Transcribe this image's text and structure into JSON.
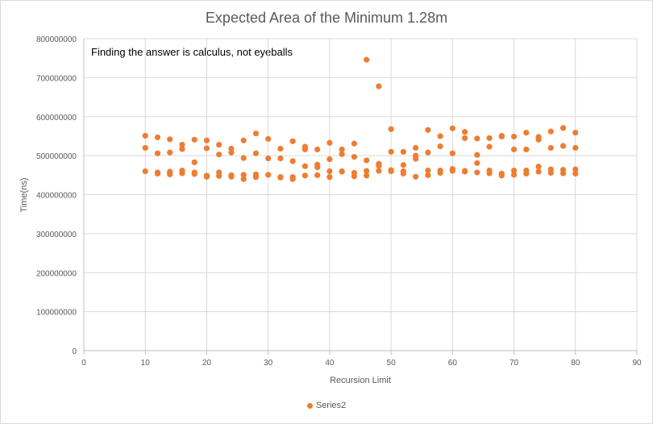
{
  "colors": {
    "marker": "#ed7d31",
    "gridline": "#d9d9d9",
    "axis_line": "#bfbfbf",
    "text": "#595959"
  },
  "chart_data": {
    "type": "scatter",
    "title": "Expected Area of the Minimum 1.28m",
    "annotation": "Finding the answer is calculus, not eyeballs",
    "xlabel": "Recursion Limit",
    "ylabel": "Time(ns)",
    "xlim": [
      0,
      90
    ],
    "ylim": [
      0,
      800000000
    ],
    "x_ticks": [
      0,
      10,
      20,
      30,
      40,
      50,
      60,
      70,
      80,
      90
    ],
    "x_tick_labels": [
      "0",
      "10",
      "20",
      "30",
      "40",
      "50",
      "60",
      "70",
      "80",
      "90"
    ],
    "y_ticks": [
      0,
      100000000,
      200000000,
      300000000,
      400000000,
      500000000,
      600000000,
      700000000,
      800000000
    ],
    "y_tick_labels": [
      "0",
      "100000000",
      "200000000",
      "300000000",
      "400000000",
      "500000000",
      "600000000",
      "700000000",
      "800000000"
    ],
    "grid": true,
    "legend_position": "bottom",
    "series": [
      {
        "name": "Series2",
        "points": [
          [
            10,
            551000000
          ],
          [
            10,
            520000000
          ],
          [
            10,
            460000000
          ],
          [
            12,
            547000000
          ],
          [
            12,
            506000000
          ],
          [
            12,
            457000000
          ],
          [
            12,
            454000000
          ],
          [
            14,
            542000000
          ],
          [
            14,
            508000000
          ],
          [
            14,
            459000000
          ],
          [
            14,
            456000000
          ],
          [
            14,
            452000000
          ],
          [
            16,
            528000000
          ],
          [
            16,
            517000000
          ],
          [
            16,
            462000000
          ],
          [
            16,
            455000000
          ],
          [
            18,
            541000000
          ],
          [
            18,
            483000000
          ],
          [
            18,
            457000000
          ],
          [
            18,
            453000000
          ],
          [
            20,
            539000000
          ],
          [
            20,
            519000000
          ],
          [
            20,
            449000000
          ],
          [
            20,
            446000000
          ],
          [
            22,
            528000000
          ],
          [
            22,
            503000000
          ],
          [
            22,
            457000000
          ],
          [
            22,
            448000000
          ],
          [
            24,
            518000000
          ],
          [
            24,
            508000000
          ],
          [
            24,
            450000000
          ],
          [
            24,
            446000000
          ],
          [
            26,
            539000000
          ],
          [
            26,
            494000000
          ],
          [
            26,
            451000000
          ],
          [
            26,
            440000000
          ],
          [
            28,
            557000000
          ],
          [
            28,
            506000000
          ],
          [
            28,
            452000000
          ],
          [
            28,
            445000000
          ],
          [
            30,
            543000000
          ],
          [
            30,
            493000000
          ],
          [
            30,
            451000000
          ],
          [
            32,
            518000000
          ],
          [
            32,
            493000000
          ],
          [
            32,
            445000000
          ],
          [
            32,
            444000000
          ],
          [
            34,
            537000000
          ],
          [
            34,
            486000000
          ],
          [
            34,
            445000000
          ],
          [
            34,
            440000000
          ],
          [
            36,
            523000000
          ],
          [
            36,
            516000000
          ],
          [
            36,
            473000000
          ],
          [
            36,
            449000000
          ],
          [
            38,
            516000000
          ],
          [
            38,
            477000000
          ],
          [
            38,
            470000000
          ],
          [
            38,
            450000000
          ],
          [
            40,
            533000000
          ],
          [
            40,
            491000000
          ],
          [
            40,
            460000000
          ],
          [
            40,
            445000000
          ],
          [
            42,
            516000000
          ],
          [
            42,
            504000000
          ],
          [
            42,
            460000000
          ],
          [
            42,
            459000000
          ],
          [
            44,
            531000000
          ],
          [
            44,
            497000000
          ],
          [
            44,
            456000000
          ],
          [
            44,
            447000000
          ],
          [
            46,
            746000000
          ],
          [
            46,
            488000000
          ],
          [
            46,
            461000000
          ],
          [
            46,
            449000000
          ],
          [
            48,
            678000000
          ],
          [
            48,
            479000000
          ],
          [
            48,
            474000000
          ],
          [
            48,
            461000000
          ],
          [
            50,
            568000000
          ],
          [
            50,
            510000000
          ],
          [
            50,
            463000000
          ],
          [
            50,
            460000000
          ],
          [
            52,
            510000000
          ],
          [
            52,
            476000000
          ],
          [
            52,
            460000000
          ],
          [
            52,
            454000000
          ],
          [
            54,
            520000000
          ],
          [
            54,
            500000000
          ],
          [
            54,
            492000000
          ],
          [
            54,
            446000000
          ],
          [
            56,
            566000000
          ],
          [
            56,
            508000000
          ],
          [
            56,
            462000000
          ],
          [
            56,
            450000000
          ],
          [
            58,
            550000000
          ],
          [
            58,
            524000000
          ],
          [
            58,
            462000000
          ],
          [
            58,
            456000000
          ],
          [
            60,
            570000000
          ],
          [
            60,
            506000000
          ],
          [
            60,
            466000000
          ],
          [
            60,
            461000000
          ],
          [
            62,
            561000000
          ],
          [
            62,
            545000000
          ],
          [
            62,
            461000000
          ],
          [
            62,
            459000000
          ],
          [
            64,
            544000000
          ],
          [
            64,
            502000000
          ],
          [
            64,
            481000000
          ],
          [
            64,
            457000000
          ],
          [
            66,
            545000000
          ],
          [
            66,
            523000000
          ],
          [
            66,
            462000000
          ],
          [
            66,
            455000000
          ],
          [
            68,
            551000000
          ],
          [
            68,
            549000000
          ],
          [
            68,
            454000000
          ],
          [
            68,
            449000000
          ],
          [
            70,
            549000000
          ],
          [
            70,
            516000000
          ],
          [
            70,
            462000000
          ],
          [
            70,
            451000000
          ],
          [
            72,
            559000000
          ],
          [
            72,
            516000000
          ],
          [
            72,
            462000000
          ],
          [
            72,
            454000000
          ],
          [
            74,
            548000000
          ],
          [
            74,
            541000000
          ],
          [
            74,
            472000000
          ],
          [
            74,
            459000000
          ],
          [
            76,
            562000000
          ],
          [
            76,
            520000000
          ],
          [
            76,
            465000000
          ],
          [
            76,
            456000000
          ],
          [
            78,
            571000000
          ],
          [
            78,
            525000000
          ],
          [
            78,
            464000000
          ],
          [
            78,
            455000000
          ],
          [
            80,
            559000000
          ],
          [
            80,
            520000000
          ],
          [
            80,
            465000000
          ],
          [
            80,
            454000000
          ]
        ]
      }
    ]
  }
}
